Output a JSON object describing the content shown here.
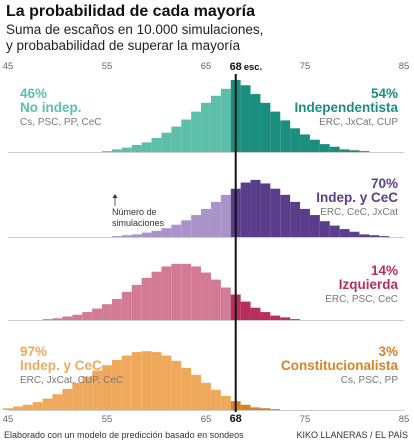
{
  "header": {
    "title": "La probabilidad de cada mayoría",
    "subtitle_line1": "Suma de escaños en 10.000 simulaciones,",
    "subtitle_line2": "y probababilidad de superar la mayoría"
  },
  "footer": {
    "left": "Elaborado con un modelo de predicción basado en sondeos",
    "right": "KIKO LLANERAS / EL PAÍS"
  },
  "annotation": "Número de\nsimulaciones",
  "chart_data": {
    "type": "bar",
    "x_ticks": [
      45,
      55,
      65,
      75,
      85
    ],
    "majority_line": 68,
    "majority_label_top": "68",
    "majority_label_unit": "esc.",
    "majority_label_bottom": "68",
    "x_range": [
      45,
      85
    ],
    "panels": [
      {
        "color": "#5dbfaa",
        "color_dark": "#1a8f80",
        "left_pct": "46%",
        "left_name": "No indep.",
        "left_parties": "Cs, PSC, PP, CeC",
        "right_pct": "54%",
        "right_name": "Independentista",
        "right_parties": "ERC, JxCat, CUP",
        "x": [
          55,
          56,
          57,
          58,
          59,
          60,
          61,
          62,
          63,
          64,
          65,
          66,
          67,
          68,
          69,
          70,
          71,
          72,
          73,
          74,
          75,
          76,
          77,
          78,
          79,
          80,
          81
        ],
        "values": [
          1,
          3,
          5,
          8,
          11,
          16,
          22,
          29,
          37,
          46,
          56,
          64,
          72,
          82,
          76,
          66,
          56,
          46,
          36,
          27,
          20,
          14,
          9,
          6,
          3,
          2,
          1
        ]
      },
      {
        "color": "#a994c9",
        "color_dark": "#5a3e8c",
        "left_pct": "",
        "left_name": "",
        "left_parties": "",
        "right_pct": "70%",
        "right_name": "Indep. y CeC",
        "right_parties": "ERC, CeC, JxCat",
        "x": [
          56,
          57,
          58,
          59,
          60,
          61,
          62,
          63,
          64,
          65,
          66,
          67,
          68,
          69,
          70,
          71,
          72,
          73,
          74,
          75,
          76,
          77,
          78,
          79,
          80,
          81,
          82,
          83
        ],
        "values": [
          1,
          2,
          3,
          5,
          7,
          10,
          14,
          19,
          25,
          32,
          40,
          48,
          55,
          62,
          65,
          61,
          55,
          48,
          40,
          32,
          25,
          18,
          13,
          9,
          6,
          3,
          2,
          1
        ]
      },
      {
        "color": "#d37b95",
        "color_dark": "#b82e5c",
        "left_pct": "",
        "left_name": "",
        "left_parties": "",
        "right_pct": "14%",
        "right_name": "Izquierda",
        "right_parties": "ERC, PSC, CeC",
        "x": [
          49,
          50,
          51,
          52,
          53,
          54,
          55,
          56,
          57,
          58,
          59,
          60,
          61,
          62,
          63,
          64,
          65,
          66,
          67,
          68,
          69,
          70,
          71,
          72,
          73,
          74
        ],
        "values": [
          1,
          2,
          4,
          6,
          9,
          13,
          18,
          24,
          32,
          40,
          48,
          55,
          61,
          64,
          64,
          61,
          54,
          46,
          37,
          29,
          21,
          14,
          9,
          5,
          3,
          1
        ]
      },
      {
        "color": "#efa95c",
        "color_dark": "#d98224",
        "left_pct": "97%",
        "left_name": "Indep. y CeC",
        "left_parties": "ERC, JxCat, CUP, CeC",
        "right_pct": "3%",
        "right_name": "Constitucionalista",
        "right_parties": "Cs, PSC, PP",
        "x": [
          45,
          46,
          47,
          48,
          49,
          50,
          51,
          52,
          53,
          54,
          55,
          56,
          57,
          58,
          59,
          60,
          61,
          62,
          63,
          64,
          65,
          66,
          67,
          68,
          69,
          70,
          71,
          72
        ],
        "values": [
          2,
          4,
          6,
          9,
          13,
          18,
          24,
          31,
          38,
          45,
          51,
          57,
          62,
          66,
          67,
          66,
          62,
          56,
          48,
          40,
          31,
          23,
          16,
          10,
          6,
          3,
          2,
          1
        ]
      }
    ]
  }
}
